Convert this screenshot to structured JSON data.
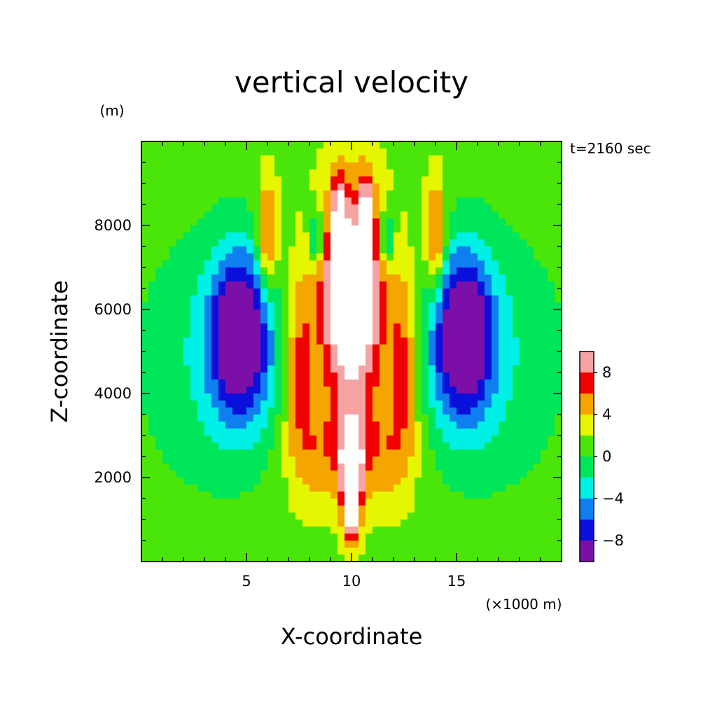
{
  "chart_data": {
    "type": "contour",
    "title": "vertical velocity",
    "xlabel": "X-coordinate",
    "ylabel": "Z-coordinate",
    "x_units": "(×1000 m)",
    "y_units": "(m)",
    "time_label": "t=2160 sec",
    "xlim": [
      0,
      20
    ],
    "ylim": [
      0,
      10000
    ],
    "x_ticks": [
      5,
      10,
      15
    ],
    "y_ticks": [
      2000,
      4000,
      6000,
      8000
    ],
    "x_tick_labels": [
      "5",
      "10",
      "15"
    ],
    "y_tick_labels": [
      "2000",
      "4000",
      "6000",
      "8000"
    ],
    "grid": false,
    "colorbar": {
      "levels": [
        -10,
        -8,
        -6,
        -4,
        -2,
        0,
        2,
        4,
        6,
        8,
        10
      ],
      "labels": [
        "8",
        "4",
        "0",
        "−4",
        "−8"
      ],
      "label_values": [
        8,
        4,
        0,
        -4,
        -8
      ],
      "colors": [
        "#7b0fa8",
        "#0a10dc",
        "#0f7ff0",
        "#00f0e6",
        "#00e65a",
        "#4ae60a",
        "#e6f500",
        "#f5a500",
        "#f00000",
        "#f7a3a3"
      ],
      "above_max_color": "#ffffff",
      "placement": "right"
    },
    "features": [
      {
        "name": "central updraft core",
        "x": 10,
        "z_range": [
          3200,
          9500
        ],
        "w": "> 10"
      },
      {
        "name": "left downdraft core",
        "x": 4.7,
        "z_range": [
          4000,
          7700
        ],
        "w": "< -10"
      },
      {
        "name": "right downdraft core",
        "x": 15.3,
        "z_range": [
          4000,
          7700
        ],
        "w": "< -10"
      }
    ]
  }
}
